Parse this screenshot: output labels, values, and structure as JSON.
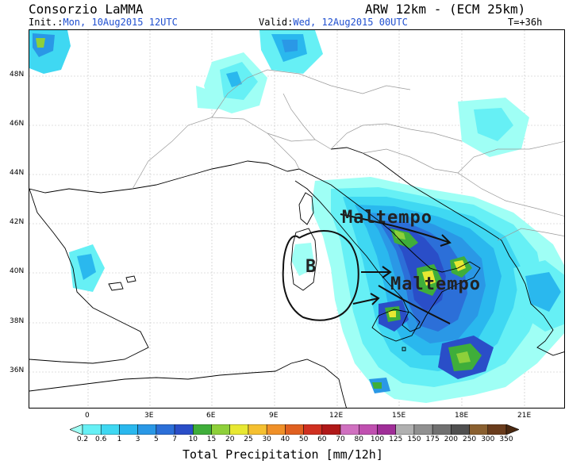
{
  "header": {
    "title_left": "Consorzio LaMMA",
    "title_right": "ARW 12km - (ECM 25km)",
    "init_label": "Init.:",
    "init_value": "Mon, 10Aug2015 12UTC",
    "valid_label": "Valid:",
    "valid_value": "Wed, 12Aug2015 00UTC",
    "timestep": "T=+36h"
  },
  "axes": {
    "lat_labels": [
      "48N",
      "46N",
      "44N",
      "42N",
      "40N",
      "38N",
      "36N"
    ],
    "lon_labels": [
      "0",
      "3E",
      "6E",
      "9E",
      "12E",
      "15E",
      "18E",
      "21E"
    ]
  },
  "colorbar": {
    "levels": [
      "0.2",
      "0.6",
      "1",
      "3",
      "5",
      "7",
      "10",
      "15",
      "20",
      "25",
      "30",
      "40",
      "50",
      "60",
      "70",
      "80",
      "100",
      "125",
      "150",
      "175",
      "200",
      "250",
      "300",
      "350"
    ],
    "colors": [
      "#9ffff5",
      "#66f0f5",
      "#3fd8f2",
      "#2ab8ee",
      "#2a98e6",
      "#2c6fd8",
      "#2a4ec8",
      "#3fae3a",
      "#8ed03a",
      "#e8e832",
      "#f5c030",
      "#f09028",
      "#e06020",
      "#d03020",
      "#b01818",
      "#d070c0",
      "#c050b0",
      "#a02e98",
      "#b0b0b0",
      "#909090",
      "#707070",
      "#505050",
      "#8a6030",
      "#6a3c1c",
      "#4a2810"
    ],
    "title": "Total Precipitation [mm/12h]"
  },
  "annotations": {
    "low_label": "B",
    "weather_label_1": "Maltempo",
    "weather_label_2": "Maltempo"
  }
}
